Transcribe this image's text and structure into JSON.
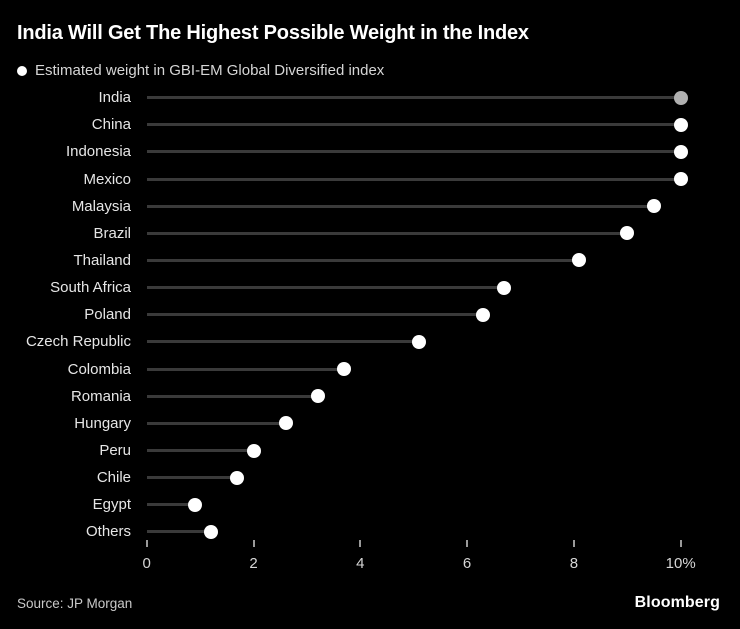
{
  "header": {
    "title": "India Will Get The Highest Possible Weight in the Index",
    "legend_label": "Estimated weight in GBI-EM Global Diversified index"
  },
  "chart_data": {
    "type": "scatter",
    "subtype": "horizontal-lollipop-dot",
    "title": "India Will Get The Highest Possible Weight in the Index",
    "legend": "Estimated weight in GBI-EM Global Diversified index",
    "legend_position": "top-left",
    "orientation": "horizontal",
    "unit": "%",
    "categories": [
      "India",
      "China",
      "Indonesia",
      "Mexico",
      "Malaysia",
      "Brazil",
      "Thailand",
      "South Africa",
      "Poland",
      "Czech Republic",
      "Colombia",
      "Romania",
      "Hungary",
      "Peru",
      "Chile",
      "Egypt",
      "Others"
    ],
    "values": [
      10.0,
      10.0,
      10.0,
      10.0,
      9.5,
      9.0,
      8.1,
      6.7,
      6.3,
      5.1,
      3.7,
      3.2,
      2.6,
      2.0,
      1.7,
      0.9,
      1.2
    ],
    "xlim": [
      0,
      10
    ],
    "x_ticks": [
      {
        "value": 0,
        "label": "0"
      },
      {
        "value": 2,
        "label": "2"
      },
      {
        "value": 4,
        "label": "4"
      },
      {
        "value": 6,
        "label": "6"
      },
      {
        "value": 8,
        "label": "8"
      },
      {
        "value": 10,
        "label": "10%"
      }
    ],
    "grid": false,
    "background_color": "#000000",
    "dot_color": "#ffffff",
    "line_color": "#3a3a3a",
    "highlight": {
      "category": "India",
      "color": "#b0b0b0"
    }
  },
  "footer": {
    "source": "Source: JP Morgan",
    "brand": "Bloomberg"
  }
}
